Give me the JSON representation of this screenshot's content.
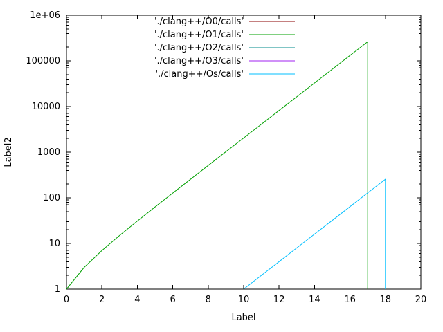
{
  "chart_data": {
    "type": "line",
    "title": "",
    "xlabel": "Label",
    "ylabel": "Label2",
    "x_scale": "linear",
    "y_scale": "log",
    "xlim": [
      0,
      20
    ],
    "ylim": [
      1,
      1000000
    ],
    "x_ticks": [
      0,
      2,
      4,
      6,
      8,
      10,
      12,
      14,
      16,
      18,
      20
    ],
    "y_ticks": [
      1,
      10,
      100,
      1000,
      10000,
      100000,
      1000000
    ],
    "y_tick_labels": [
      "1",
      "10",
      "100",
      "1000",
      "10000",
      "100000",
      "1e+06"
    ],
    "grid": false,
    "legend_position": "top-center-inside",
    "axis_color": "#000000",
    "background_color": "#ffffff",
    "series": [
      {
        "label": "'./clang++/O0/calls'",
        "color": "#8b0000",
        "x": [],
        "y": []
      },
      {
        "label": "'./clang++/O1/calls'",
        "color": "#00a000",
        "x": [
          0,
          1,
          2,
          3,
          4,
          5,
          6,
          7,
          8,
          9,
          10,
          11,
          12,
          13,
          14,
          15,
          16,
          17,
          17
        ],
        "y": [
          1,
          3,
          7,
          15,
          31,
          63,
          127,
          255,
          511,
          1023,
          2047,
          4095,
          8191,
          16383,
          32767,
          65535,
          131071,
          262143,
          1
        ]
      },
      {
        "label": "'./clang++/O2/calls'",
        "color": "#008b8b",
        "x": [],
        "y": []
      },
      {
        "label": "'./clang++/O3/calls'",
        "color": "#a020f0",
        "x": [],
        "y": []
      },
      {
        "label": "'./clang++/Os/calls'",
        "color": "#00bfff",
        "x": [
          10,
          11,
          12,
          13,
          14,
          15,
          16,
          17,
          18,
          18
        ],
        "y": [
          1,
          2,
          4,
          8,
          16,
          32,
          64,
          128,
          256,
          1
        ]
      }
    ]
  }
}
